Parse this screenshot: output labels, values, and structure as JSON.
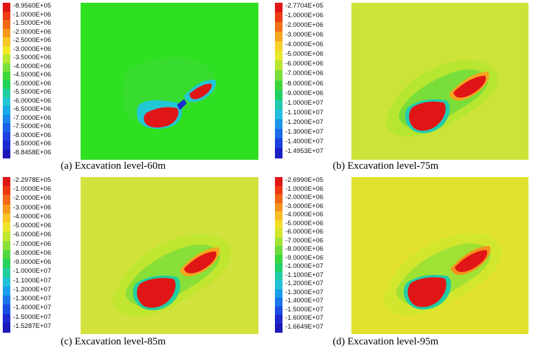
{
  "panels": [
    {
      "caption": "(a) Excavation level-60m",
      "background_color": "#2ee01f",
      "legend": {
        "labels": [
          "-8.9560E+05",
          "-1.0000E+06",
          "-1.5000E+06",
          "-2.0000E+06",
          "-2.5000E+06",
          "-3.0000E+06",
          "-3.5000E+06",
          "-4.0000E+06",
          "-4.5000E+06",
          "-5.0000E+06",
          "-5.5000E+06",
          "-6.0000E+06",
          "-6.5000E+06",
          "-7.0000E+06",
          "-7.5000E+06",
          "-8.0000E+06",
          "-8.5000E+06",
          "-8.8458E+06"
        ],
        "colors": [
          "#e01616",
          "#ee3a10",
          "#f26a16",
          "#f59a1c",
          "#f8c626",
          "#f2ea26",
          "#b6e830",
          "#7ae03a",
          "#3fd83a",
          "#20d458",
          "#20cfa0",
          "#22c7d6",
          "#1aa8e6",
          "#1a86ea",
          "#1a60ea",
          "#1e40e0",
          "#1a2ad0",
          "#1c18b8"
        ]
      }
    },
    {
      "caption": "(b) Excavation level-75m",
      "background_color": "#cce43a",
      "legend": {
        "labels": [
          "-2.7704E+05",
          "-1.0000E+06",
          "-2.0000E+06",
          "-3.0000E+06",
          "-4.0000E+06",
          "-5.0000E+06",
          "-6.0000E+06",
          "-7.0000E+06",
          "-8.0000E+06",
          "-9.0000E+06",
          "-1.0000E+07",
          "-1.1000E+07",
          "-1.2000E+07",
          "-1.3000E+07",
          "-1.4000E+07",
          "-1.4953E+07"
        ],
        "colors": [
          "#e01616",
          "#ee3e10",
          "#f2701a",
          "#f5a620",
          "#f8d02a",
          "#e6e82c",
          "#b6e630",
          "#7ade3a",
          "#3cd63c",
          "#20d064",
          "#22cbb0",
          "#22bfe0",
          "#1a96ea",
          "#1a6aea",
          "#1a40e0",
          "#1c20c4"
        ]
      }
    },
    {
      "caption": "(c) Excavation level-85m",
      "background_color": "#d2e23c",
      "legend": {
        "labels": [
          "-2.2978E+05",
          "-1.0000E+06",
          "-2.0000E+06",
          "-3.0000E+06",
          "-4.0000E+06",
          "-5.0000E+06",
          "-6.0000E+06",
          "-7.0000E+06",
          "-8.0000E+06",
          "-9.0000E+06",
          "-1.0000E+07",
          "-1.1000E+07",
          "-1.2000E+07",
          "-1.3000E+07",
          "-1.4000E+07",
          "-1.5000E+07",
          "-1.5287E+07"
        ],
        "colors": [
          "#e01616",
          "#ec3a10",
          "#f26a18",
          "#f59a1e",
          "#f8c428",
          "#eee62c",
          "#c0e630",
          "#88df38",
          "#52d83c",
          "#28d25a",
          "#20cea0",
          "#22c3d8",
          "#1aa0ea",
          "#1a76ea",
          "#1a4ee2",
          "#1c2ad0",
          "#1c18b8"
        ]
      }
    },
    {
      "caption": "(d) Excavation level-95m",
      "background_color": "#e2e22e",
      "legend": {
        "labels": [
          "-2.6990E+05",
          "-1.0000E+06",
          "-2.0000E+06",
          "-3.0000E+06",
          "-4.0000E+06",
          "-5.0000E+06",
          "-6.0000E+06",
          "-7.0000E+06",
          "-8.0000E+06",
          "-9.0000E+06",
          "-1.0000E+07",
          "-1.1000E+07",
          "-1.2000E+07",
          "-1.3000E+07",
          "-1.4000E+07",
          "-1.5000E+07",
          "-1.6000E+07",
          "-1.6649E+07"
        ],
        "colors": [
          "#e01616",
          "#ec3810",
          "#f26416",
          "#f5921c",
          "#f8bc24",
          "#f2de28",
          "#d2e62e",
          "#a0e234",
          "#6cdc3a",
          "#3cd63e",
          "#22d068",
          "#20cca6",
          "#22c2d8",
          "#1a9cea",
          "#1a74ea",
          "#1a4ce2",
          "#1c28cc",
          "#1c18b8"
        ]
      }
    }
  ]
}
